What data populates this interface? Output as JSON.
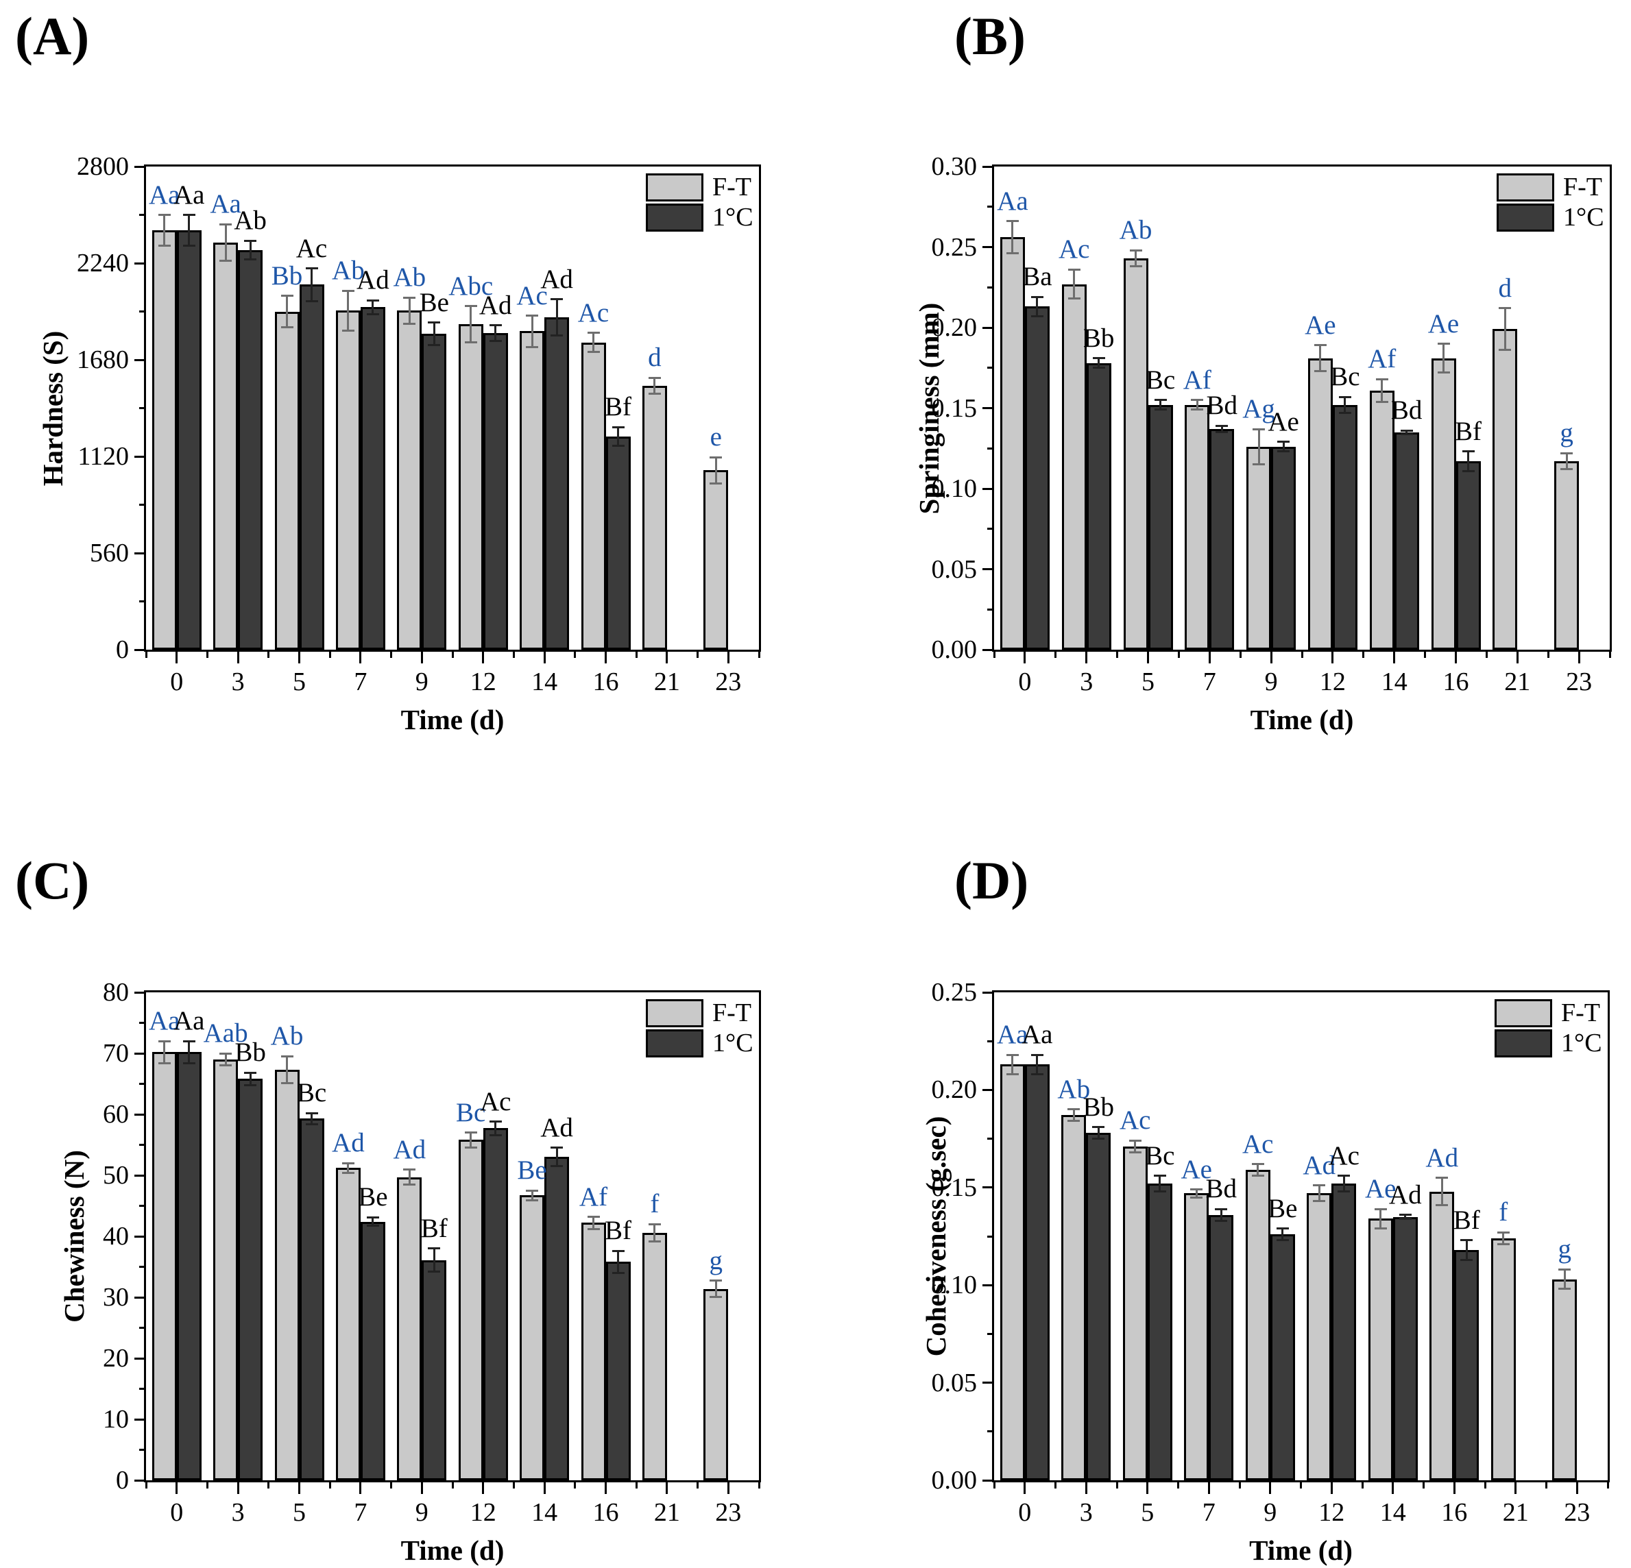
{
  "figure_title": "",
  "legend": {
    "series1": "F-T",
    "series2": "1°C"
  },
  "colors": {
    "ft_bar": "#c9c9c9",
    "cold_bar": "#3b3b3b",
    "ft_letter": "#1e56a8",
    "cold_letter": "#000000",
    "axis": "#000000",
    "ft_errbar": "#6e6e6e",
    "cold_errbar": "#222222"
  },
  "chart_data": [
    {
      "type": "bar",
      "panel_label": "(A)",
      "ylabel": "Hardness (S)",
      "xlabel": "Time (d)",
      "ymax": 2800,
      "ylim": [
        0,
        2800
      ],
      "yticks": [
        0,
        560,
        1120,
        1680,
        2240,
        2800
      ],
      "ytick_labels": [
        "0",
        "560",
        "1120",
        "1680",
        "2240",
        "2800"
      ],
      "categories": [
        "0",
        "3",
        "5",
        "7",
        "9",
        "12",
        "14",
        "16",
        "21",
        "23"
      ],
      "legend_position": "top-right",
      "grid": false,
      "series": [
        {
          "name": "F-T",
          "color": "#c9c9c9",
          "letter_color": "#1e56a8",
          "values": [
            2430,
            2360,
            1960,
            1965,
            1965,
            1885,
            1845,
            1780,
            1530,
            1040
          ],
          "errors": [
            90,
            105,
            90,
            115,
            75,
            105,
            90,
            55,
            45,
            75
          ],
          "letters": [
            "Aa",
            "Aa",
            "Bb",
            "Ab",
            "Ab",
            "Abc",
            "Ac",
            "Ac",
            "d",
            "e"
          ]
        },
        {
          "name": "1°C",
          "color": "#3b3b3b",
          "letter_color": "#000000",
          "values": [
            2430,
            2315,
            2115,
            1985,
            1830,
            1835,
            1925,
            1235,
            null,
            null
          ],
          "errors": [
            90,
            55,
            95,
            40,
            65,
            45,
            105,
            55,
            null,
            null
          ],
          "letters": [
            "Aa",
            "Ab",
            "Ac",
            "Ad",
            "Be",
            "Ad",
            "Ad",
            "Bf",
            null,
            null
          ]
        }
      ]
    },
    {
      "type": "bar",
      "panel_label": "(B)",
      "ylabel": "Springiness (mm)",
      "xlabel": "Time (d)",
      "ymax": 0.3,
      "ylim": [
        0,
        0.3
      ],
      "yticks": [
        0,
        0.05,
        0.1,
        0.15,
        0.2,
        0.25,
        0.3
      ],
      "ytick_labels": [
        "0.00",
        "0.05",
        "0.10",
        "0.15",
        "0.20",
        "0.25",
        "0.30"
      ],
      "categories": [
        "0",
        "3",
        "5",
        "7",
        "9",
        "12",
        "14",
        "16",
        "21",
        "23"
      ],
      "legend_position": "top-right",
      "grid": false,
      "series": [
        {
          "name": "F-T",
          "color": "#c9c9c9",
          "letter_color": "#1e56a8",
          "values": [
            0.256,
            0.227,
            0.243,
            0.152,
            0.126,
            0.181,
            0.161,
            0.181,
            0.199,
            0.117
          ],
          "errors": [
            0.01,
            0.009,
            0.005,
            0.003,
            0.011,
            0.008,
            0.007,
            0.009,
            0.013,
            0.005
          ],
          "letters": [
            "Aa",
            "Ac",
            "Ab",
            "Af",
            "Ag",
            "Ae",
            "Af",
            "Ae",
            "d",
            "g"
          ]
        },
        {
          "name": "1°C",
          "color": "#3b3b3b",
          "letter_color": "#000000",
          "values": [
            0.213,
            0.178,
            0.152,
            0.137,
            0.126,
            0.152,
            0.135,
            0.117,
            null,
            null
          ],
          "errors": [
            0.006,
            0.003,
            0.003,
            0.002,
            0.003,
            0.005,
            0.001,
            0.006,
            null,
            null
          ],
          "letters": [
            "Ba",
            "Bb",
            "Bc",
            "Bd",
            "Ae",
            "Bc",
            "Bd",
            "Bf",
            null,
            null
          ]
        }
      ]
    },
    {
      "type": "bar",
      "panel_label": "(C)",
      "ylabel": "Chewiness (N)",
      "xlabel": "Time (d)",
      "ymax": 80,
      "ylim": [
        0,
        80
      ],
      "yticks": [
        0,
        10,
        20,
        30,
        40,
        50,
        60,
        70,
        80
      ],
      "ytick_labels": [
        "0",
        "10",
        "20",
        "30",
        "40",
        "50",
        "60",
        "70",
        "80"
      ],
      "categories": [
        "0",
        "3",
        "5",
        "7",
        "9",
        "12",
        "14",
        "16",
        "21",
        "23"
      ],
      "legend_position": "top-right",
      "grid": false,
      "series": [
        {
          "name": "F-T",
          "color": "#c9c9c9",
          "letter_color": "#1e56a8",
          "values": [
            70.2,
            69.0,
            67.3,
            51.2,
            49.7,
            55.8,
            46.7,
            42.2,
            40.6,
            31.4
          ],
          "errors": [
            1.8,
            1.0,
            2.2,
            0.8,
            1.2,
            1.2,
            0.8,
            1.0,
            1.4,
            1.3
          ],
          "letters": [
            "Aa",
            "Aab",
            "Ab",
            "Ad",
            "Ad",
            "Bc",
            "Be",
            "Af",
            "f",
            "g"
          ]
        },
        {
          "name": "1°C",
          "color": "#3b3b3b",
          "letter_color": "#000000",
          "values": [
            70.2,
            65.8,
            59.3,
            42.4,
            36.1,
            57.7,
            53.0,
            35.8,
            null,
            null
          ],
          "errors": [
            1.8,
            1.0,
            0.9,
            0.7,
            1.9,
            1.1,
            1.5,
            1.8,
            null,
            null
          ],
          "letters": [
            "Aa",
            "Bb",
            "Bc",
            "Be",
            "Bf",
            "Ac",
            "Ad",
            "Bf",
            null,
            null
          ]
        }
      ]
    },
    {
      "type": "bar",
      "panel_label": "(D)",
      "ylabel": "Cohesiveness (g.sec)",
      "xlabel": "Time (d)",
      "ymax": 0.25,
      "ylim": [
        0,
        0.25
      ],
      "yticks": [
        0,
        0.05,
        0.1,
        0.15,
        0.2,
        0.25
      ],
      "ytick_labels": [
        "0.00",
        "0.05",
        "0.10",
        "0.15",
        "0.20",
        "0.25"
      ],
      "categories": [
        "0",
        "3",
        "5",
        "7",
        "9",
        "12",
        "14",
        "16",
        "21",
        "23"
      ],
      "legend_position": "top-right",
      "grid": false,
      "series": [
        {
          "name": "F-T",
          "color": "#c9c9c9",
          "letter_color": "#1e56a8",
          "values": [
            0.213,
            0.187,
            0.171,
            0.147,
            0.159,
            0.147,
            0.134,
            0.148,
            0.124,
            0.103
          ],
          "errors": [
            0.005,
            0.003,
            0.003,
            0.002,
            0.003,
            0.004,
            0.005,
            0.007,
            0.003,
            0.005
          ],
          "letters": [
            "Aa",
            "Ab",
            "Ac",
            "Ae",
            "Ac",
            "Ad",
            "Ae",
            "Ad",
            "f",
            "g"
          ]
        },
        {
          "name": "1°C",
          "color": "#3b3b3b",
          "letter_color": "#000000",
          "values": [
            0.213,
            0.178,
            0.152,
            0.136,
            0.126,
            0.152,
            0.135,
            0.118,
            null,
            null
          ],
          "errors": [
            0.005,
            0.003,
            0.004,
            0.003,
            0.003,
            0.004,
            0.001,
            0.005,
            null,
            null
          ],
          "letters": [
            "Aa",
            "Bb",
            "Bc",
            "Bd",
            "Be",
            "Ac",
            "Ad",
            "Bf",
            null,
            null
          ]
        }
      ]
    }
  ]
}
